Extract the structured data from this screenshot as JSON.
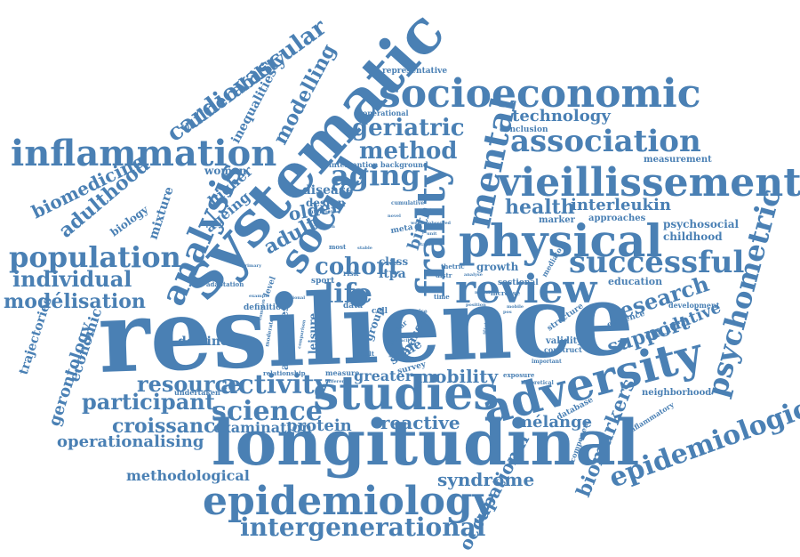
{
  "colors": {
    "word": "#4a80b4",
    "background": "#ffffff"
  },
  "words": [
    "resilience",
    "longitudinal",
    "studies",
    "adversity",
    "systematic",
    "epidemiology",
    "physical",
    "socioeconomic",
    "vieillissement",
    "inflammation",
    "frailty",
    "review",
    "social",
    "population",
    "psychometric",
    "intergenerational",
    "epidemiological",
    "mental",
    "successful",
    "association",
    "analysis",
    "science",
    "activity",
    "cohort",
    "life",
    "aging",
    "method",
    "geriatric",
    "cardiovascular",
    "vulnerability",
    "modelling",
    "biomedicine",
    "adulthood",
    "individual",
    "modélisation",
    "participant",
    "resource",
    "croissance",
    "operationalising",
    "health",
    "interleukin",
    "technology",
    "research",
    "support",
    "oxidative",
    "occupational",
    "biomarkers",
    "syndrome",
    "reactive",
    "mélange",
    "mobility",
    "greater",
    "examination",
    "protein",
    "methodological",
    "gerontology",
    "economic",
    "trajectories",
    "decline",
    "adult",
    "older",
    "birth",
    "ageing",
    "higher",
    "mixture",
    "biology",
    "inequalities",
    "woman",
    "disease",
    "design",
    "intervention",
    "background",
    "representative",
    "operational",
    "conclusion",
    "measurement",
    "education",
    "development",
    "psychosocial",
    "childhood",
    "approaches",
    "marker",
    "growth",
    "ltpa",
    "class",
    "sectional",
    "adversities",
    "data",
    "cell",
    "leisure",
    "group",
    "based",
    "scale",
    "survey",
    "robust",
    "validity",
    "construct",
    "evidence",
    "structure",
    "neighborhood",
    "inflammatory",
    "database",
    "component",
    "undertaken",
    "relationship",
    "definition",
    "adaptation",
    "level",
    "sport",
    "most",
    "result",
    "measure",
    "risk",
    "exposure",
    "increase",
    "year",
    "time",
    "important",
    "meta",
    "cumulative",
    "interview",
    "primary",
    "example",
    "national",
    "stable",
    "observed",
    "weapon",
    "status",
    "distr",
    "thetric",
    "mediator",
    "position",
    "analyse",
    "pos",
    "capability",
    "moderator",
    "comparison",
    "theoretical",
    "strategy",
    "different",
    "mobile",
    "rise",
    "form",
    "model",
    "council",
    "cohesion",
    "common",
    "normal",
    "novel",
    "unit"
  ]
}
